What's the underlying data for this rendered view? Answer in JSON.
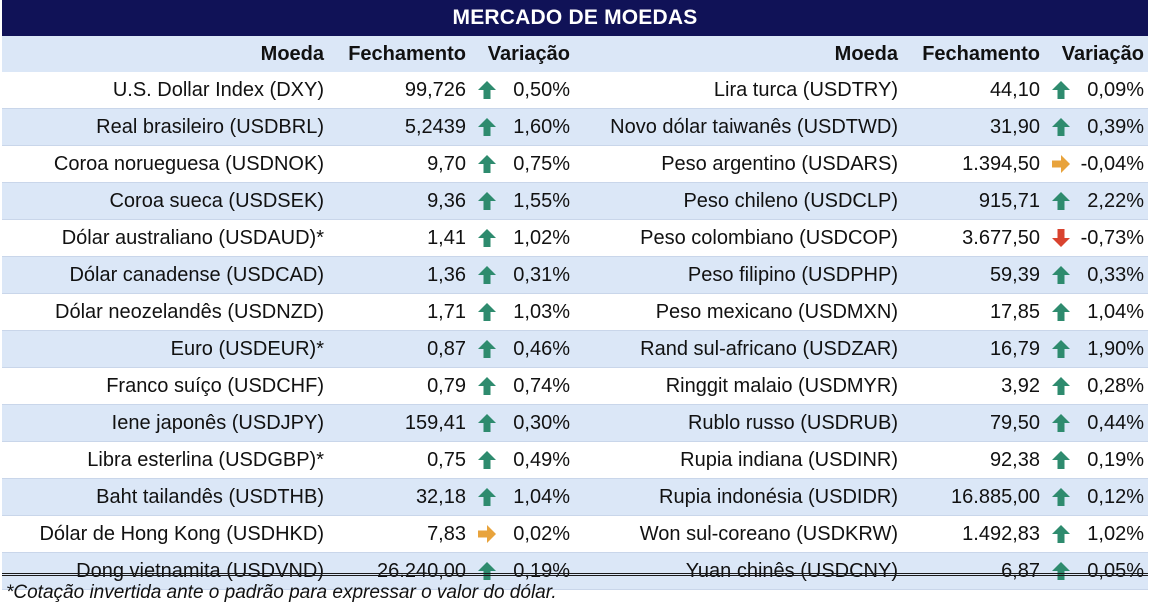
{
  "title": "MERCADO DE MOEDAS",
  "columns": {
    "currency": "Moeda",
    "close": "Fechamento",
    "change": "Variação"
  },
  "left_rows": [
    {
      "name": "U.S. Dollar Index (DXY)",
      "close": "99,726",
      "trend": "up",
      "change": "0,50%"
    },
    {
      "name": "Real brasileiro (USDBRL)",
      "close": "5,2439",
      "trend": "up",
      "change": "1,60%"
    },
    {
      "name": "Coroa norueguesa (USDNOK)",
      "close": "9,70",
      "trend": "up",
      "change": "0,75%"
    },
    {
      "name": "Coroa sueca (USDSEK)",
      "close": "9,36",
      "trend": "up",
      "change": "1,55%"
    },
    {
      "name": "Dólar australiano (USDAUD)*",
      "close": "1,41",
      "trend": "up",
      "change": "1,02%"
    },
    {
      "name": "Dólar canadense (USDCAD)",
      "close": "1,36",
      "trend": "up",
      "change": "0,31%"
    },
    {
      "name": "Dólar neozelandês (USDNZD)",
      "close": "1,71",
      "trend": "up",
      "change": "1,03%"
    },
    {
      "name": "Euro (USDEUR)*",
      "close": "0,87",
      "trend": "up",
      "change": "0,46%"
    },
    {
      "name": "Franco suíço (USDCHF)",
      "close": "0,79",
      "trend": "up",
      "change": "0,74%"
    },
    {
      "name": "Iene japonês (USDJPY)",
      "close": "159,41",
      "trend": "up",
      "change": "0,30%"
    },
    {
      "name": "Libra esterlina (USDGBP)*",
      "close": "0,75",
      "trend": "up",
      "change": "0,49%"
    },
    {
      "name": "Baht tailandês (USDTHB)",
      "close": "32,18",
      "trend": "up",
      "change": "1,04%"
    },
    {
      "name": "Dólar de Hong Kong (USDHKD)",
      "close": "7,83",
      "trend": "flat",
      "change": "0,02%"
    },
    {
      "name": "Dong vietnamita (USDVND)",
      "close": "26.240,00",
      "trend": "up",
      "change": "0,19%"
    }
  ],
  "right_rows": [
    {
      "name": "Lira turca (USDTRY)",
      "close": "44,10",
      "trend": "up",
      "change": "0,09%"
    },
    {
      "name": "Novo dólar taiwanês (USDTWD)",
      "close": "31,90",
      "trend": "up",
      "change": "0,39%"
    },
    {
      "name": "Peso argentino (USDARS)",
      "close": "1.394,50",
      "trend": "flat",
      "change": "-0,04%"
    },
    {
      "name": "Peso chileno (USDCLP)",
      "close": "915,71",
      "trend": "up",
      "change": "2,22%"
    },
    {
      "name": "Peso colombiano (USDCOP)",
      "close": "3.677,50",
      "trend": "down",
      "change": "-0,73%"
    },
    {
      "name": "Peso filipino (USDPHP)",
      "close": "59,39",
      "trend": "up",
      "change": "0,33%"
    },
    {
      "name": "Peso mexicano (USDMXN)",
      "close": "17,85",
      "trend": "up",
      "change": "1,04%"
    },
    {
      "name": "Rand sul-africano (USDZAR)",
      "close": "16,79",
      "trend": "up",
      "change": "1,90%"
    },
    {
      "name": "Ringgit malaio (USDMYR)",
      "close": "3,92",
      "trend": "up",
      "change": "0,28%"
    },
    {
      "name": "Rublo russo (USDRUB)",
      "close": "79,50",
      "trend": "up",
      "change": "0,44%"
    },
    {
      "name": "Rupia indiana (USDINR)",
      "close": "92,38",
      "trend": "up",
      "change": "0,19%"
    },
    {
      "name": "Rupia indonésia (USDIDR)",
      "close": "16.885,00",
      "trend": "up",
      "change": "0,12%"
    },
    {
      "name": "Won sul-coreano (USDKRW)",
      "close": "1.492,83",
      "trend": "up",
      "change": "1,02%"
    },
    {
      "name": "Yuan chinês (USDCNY)",
      "close": "6,87",
      "trend": "up",
      "change": "0,05%"
    }
  ],
  "footnote": "*Cotação invertida ante o padrão para expressar o valor do dólar.",
  "colors": {
    "title_bg": "#101257",
    "band": "#dbe7f7",
    "up": "#2e8b6e",
    "flat": "#e8a33c",
    "down": "#d9432f"
  }
}
